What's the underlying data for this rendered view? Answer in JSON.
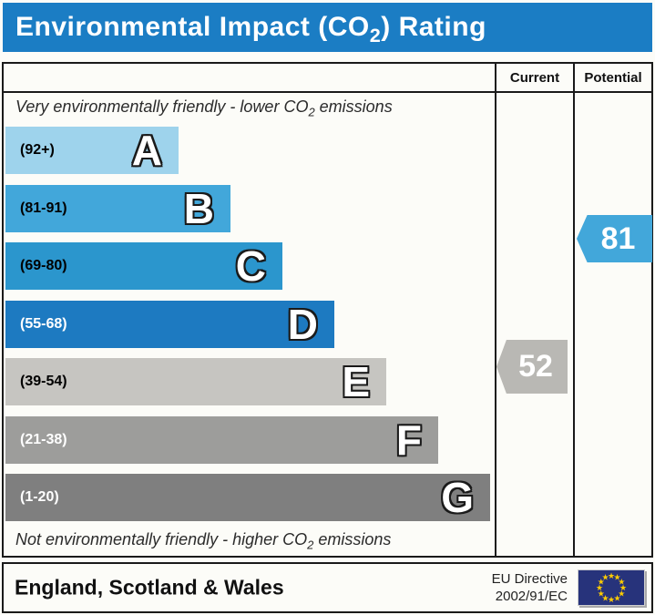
{
  "title": {
    "pre": "Environmental Impact (CO",
    "sub": "2",
    "post": ") Rating"
  },
  "table": {
    "columns": [
      "Current",
      "Potential"
    ],
    "top_note": {
      "pre": "Very environmentally friendly - lower CO",
      "sub": "2",
      "post": " emissions"
    },
    "bottom_note": {
      "pre": "Not environmentally friendly - higher CO",
      "sub": "2",
      "post": " emissions"
    },
    "bands": [
      {
        "letter": "A",
        "range": "(92+)",
        "color": "#9ed3ec",
        "range_color": "#000000"
      },
      {
        "letter": "B",
        "range": "(81-91)",
        "color": "#42a7da",
        "range_color": "#000000"
      },
      {
        "letter": "C",
        "range": "(69-80)",
        "color": "#2b96cd",
        "range_color": "#000000"
      },
      {
        "letter": "D",
        "range": "(55-68)",
        "color": "#1d7ac1",
        "range_color": "#ffffff"
      },
      {
        "letter": "E",
        "range": "(39-54)",
        "color": "#c6c5c1",
        "range_color": "#000000"
      },
      {
        "letter": "F",
        "range": "(21-38)",
        "color": "#9d9d9b",
        "range_color": "#ffffff"
      },
      {
        "letter": "G",
        "range": "(1-20)",
        "color": "#7f7f7f",
        "range_color": "#ffffff"
      }
    ],
    "current": {
      "value": "52",
      "color": "#b9b8b4"
    },
    "potential": {
      "value": "81",
      "color": "#42a7da"
    }
  },
  "footer": {
    "region": "England, Scotland & Wales",
    "directive_line1": "EU Directive",
    "directive_line2": "2002/91/EC",
    "eu_flag": {
      "background": "#27337b",
      "star_color": "#ffcc00",
      "star_glyph": "★"
    }
  },
  "colors": {
    "title_bar": "#1b7dc4",
    "border": "#1a1a1a",
    "background": "#fcfcf8"
  },
  "chart_data": {
    "type": "bar",
    "title": "Environmental Impact (CO2) Rating",
    "categories": [
      "A",
      "B",
      "C",
      "D",
      "E",
      "F",
      "G"
    ],
    "band_ranges": [
      "92+",
      "81-91",
      "69-80",
      "55-68",
      "39-54",
      "21-38",
      "1-20"
    ],
    "band_colors": [
      "#9ed3ec",
      "#42a7da",
      "#2b96cd",
      "#1d7ac1",
      "#c6c5c1",
      "#9d9d9b",
      "#7f7f7f"
    ],
    "bar_lengths_relative": [
      1,
      2,
      3,
      4,
      5,
      6,
      7
    ],
    "series": [
      {
        "name": "Current",
        "value": 52,
        "band": "E",
        "marker_color": "#b9b8b4"
      },
      {
        "name": "Potential",
        "value": 81,
        "band": "B",
        "marker_color": "#42a7da"
      }
    ],
    "xlabel": "",
    "ylabel": "",
    "legend": [
      "Current",
      "Potential"
    ],
    "annotation_top": "Very environmentally friendly - lower CO2 emissions",
    "annotation_bottom": "Not environmentally friendly - higher CO2 emissions",
    "region": "England, Scotland & Wales",
    "directive": "EU Directive 2002/91/EC"
  }
}
